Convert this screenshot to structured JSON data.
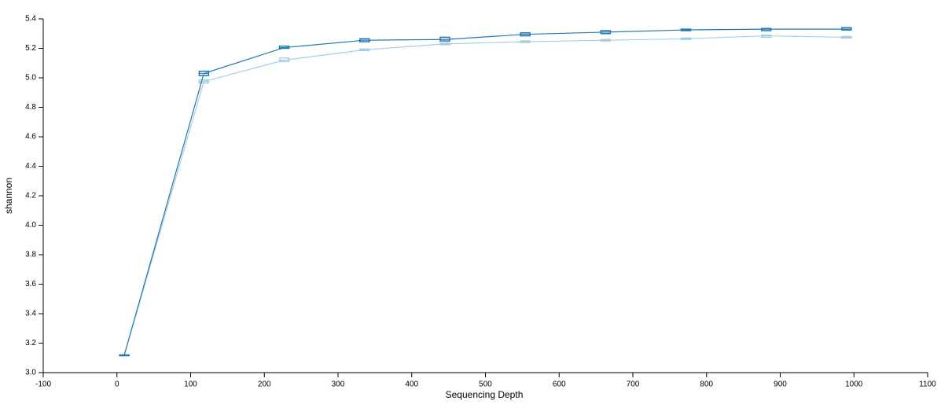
{
  "chart_data": {
    "type": "line",
    "x_label": "Sequencing Depth",
    "y_label": "shannon",
    "x": [
      10,
      118,
      227,
      336,
      445,
      554,
      663,
      772,
      881,
      990
    ],
    "series": [
      {
        "color": "#1f78b4",
        "values": [
          3.12,
          5.03,
          5.205,
          5.255,
          5.26,
          5.295,
          5.31,
          5.325,
          5.33,
          5.33
        ],
        "q1": [
          3.12,
          5.015,
          5.2,
          5.245,
          5.25,
          5.285,
          5.3,
          5.32,
          5.32,
          5.325
        ],
        "q3": [
          3.12,
          5.045,
          5.215,
          5.265,
          5.275,
          5.305,
          5.32,
          5.33,
          5.335,
          5.34
        ]
      },
      {
        "color": "#a6cee3",
        "values": [
          3.12,
          4.975,
          5.12,
          5.19,
          5.23,
          5.245,
          5.255,
          5.265,
          5.285,
          5.275
        ],
        "q1": [
          3.12,
          4.965,
          5.11,
          5.185,
          5.225,
          5.24,
          5.25,
          5.26,
          5.275,
          5.27
        ],
        "q3": [
          3.12,
          4.985,
          5.135,
          5.195,
          5.235,
          5.25,
          5.26,
          5.27,
          5.29,
          5.28
        ]
      }
    ],
    "xlim": [
      -100,
      1100
    ],
    "xticks": [
      -100,
      0,
      100,
      200,
      300,
      400,
      500,
      600,
      700,
      800,
      900,
      1000,
      1100
    ],
    "ylim": [
      3.0,
      5.4
    ],
    "yticks": [
      {
        "value": 3.0,
        "label": "3.0"
      },
      3.2,
      3.4,
      3.6,
      3.8,
      {
        "value": 4.0,
        "label": "4.0"
      },
      4.2,
      4.4,
      4.6,
      4.8,
      {
        "value": 5.0,
        "label": "5.0"
      },
      5.2,
      5.4
    ]
  }
}
